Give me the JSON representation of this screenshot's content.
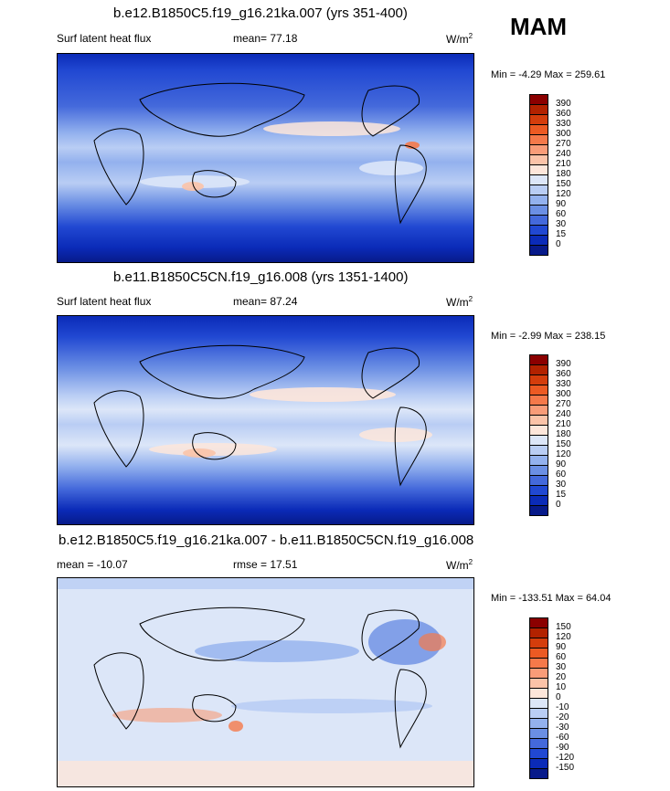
{
  "season": "MAM",
  "panels": [
    {
      "title": "b.e12.B1850C5.f19_g16.21ka.007 (yrs 351-400)",
      "left_label": "Surf latent heat flux",
      "center_label": "mean=  77.18",
      "units": "W/m",
      "units_sup": "2",
      "minmax": "Min =  -4.29 Max = 259.61",
      "colorbar": {
        "labels": [
          "390",
          "360",
          "330",
          "300",
          "270",
          "240",
          "210",
          "180",
          "150",
          "120",
          "90",
          "60",
          "30",
          "15",
          "0"
        ],
        "colors": [
          "#8b0000",
          "#b22200",
          "#d43d0c",
          "#ec5a23",
          "#f5794a",
          "#f99c78",
          "#fbc3a8",
          "#fde6da",
          "#dce6f8",
          "#b9cdf4",
          "#93b1ee",
          "#6b8fe4",
          "#4469db",
          "#2148d2",
          "#0b2bb8",
          "#071a8a"
        ]
      }
    },
    {
      "title": "b.e11.B1850C5CN.f19_g16.008 (yrs 1351-1400)",
      "left_label": "Surf latent heat flux",
      "center_label": "mean=  87.24",
      "units": "W/m",
      "units_sup": "2",
      "minmax": "Min =  -2.99 Max = 238.15",
      "colorbar": {
        "labels": [
          "390",
          "360",
          "330",
          "300",
          "270",
          "240",
          "210",
          "180",
          "150",
          "120",
          "90",
          "60",
          "30",
          "15",
          "0"
        ],
        "colors": [
          "#8b0000",
          "#b22200",
          "#d43d0c",
          "#ec5a23",
          "#f5794a",
          "#f99c78",
          "#fbc3a8",
          "#fde6da",
          "#dce6f8",
          "#b9cdf4",
          "#93b1ee",
          "#6b8fe4",
          "#4469db",
          "#2148d2",
          "#0b2bb8",
          "#071a8a"
        ]
      }
    },
    {
      "title": "b.e12.B1850C5.f19_g16.21ka.007 - b.e11.B1850C5CN.f19_g16.008",
      "left_label": "mean = -10.07",
      "center_label": "rmse =  17.51",
      "units": "W/m",
      "units_sup": "2",
      "minmax": "Min = -133.51 Max =  64.04",
      "colorbar": {
        "labels": [
          "150",
          "120",
          "90",
          "60",
          "30",
          "20",
          "10",
          "0",
          "-10",
          "-20",
          "-30",
          "-60",
          "-90",
          "-120",
          "-150"
        ],
        "colors": [
          "#8b0000",
          "#b22200",
          "#d43d0c",
          "#ec5a23",
          "#f5794a",
          "#f99c78",
          "#fbc3a8",
          "#fde6da",
          "#dce6f8",
          "#b9cdf4",
          "#93b1ee",
          "#6b8fe4",
          "#4469db",
          "#2148d2",
          "#0b2bb8",
          "#071a8a"
        ]
      }
    }
  ],
  "chart_data": [
    {
      "type": "heatmap",
      "title": "b.e12.B1850C5.f19_g16.21ka.007 (yrs 351-400)",
      "variable": "Surf latent heat flux",
      "units": "W/m^2",
      "mean": 77.18,
      "min": -4.29,
      "max": 259.61,
      "levels": [
        0,
        15,
        30,
        60,
        90,
        120,
        150,
        180,
        210,
        240,
        270,
        300,
        330,
        360,
        390
      ]
    },
    {
      "type": "heatmap",
      "title": "b.e11.B1850C5CN.f19_g16.008 (yrs 1351-1400)",
      "variable": "Surf latent heat flux",
      "units": "W/m^2",
      "mean": 87.24,
      "min": -2.99,
      "max": 238.15,
      "levels": [
        0,
        15,
        30,
        60,
        90,
        120,
        150,
        180,
        210,
        240,
        270,
        300,
        330,
        360,
        390
      ]
    },
    {
      "type": "heatmap",
      "title": "b.e12.B1850C5.f19_g16.21ka.007 - b.e11.B1850C5CN.f19_g16.008",
      "units": "W/m^2",
      "mean": -10.07,
      "rmse": 17.51,
      "min": -133.51,
      "max": 64.04,
      "levels": [
        -150,
        -120,
        -90,
        -60,
        -30,
        -20,
        -10,
        0,
        10,
        20,
        30,
        60,
        90,
        120,
        150
      ]
    }
  ]
}
